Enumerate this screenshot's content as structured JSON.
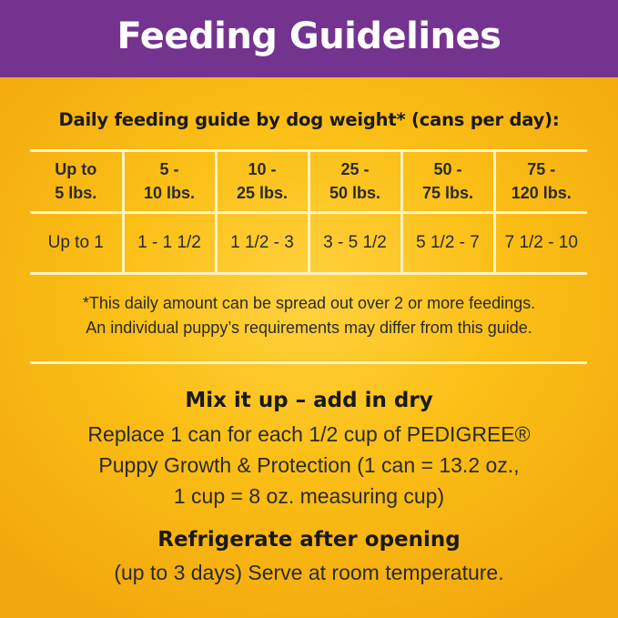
{
  "banner": {
    "title": "Feeding Guidelines"
  },
  "table": {
    "caption": "Daily feeding guide by dog weight* (cans per day):",
    "headers": [
      [
        "Up to",
        "5 lbs."
      ],
      [
        "5 -",
        "10 lbs."
      ],
      [
        "10 -",
        "25 lbs."
      ],
      [
        "25 -",
        "50 lbs."
      ],
      [
        "50 -",
        "75 lbs."
      ],
      [
        "75 -",
        "120 lbs."
      ]
    ],
    "amounts": [
      "Up to 1",
      "1 - 1 1/2",
      "1 1/2 - 3",
      "3 - 5 1/2",
      "5 1/2 - 7",
      "7 1/2 - 10"
    ]
  },
  "note": {
    "line1": "*This daily amount can be spread out over 2 or more feedings.",
    "line2": "An individual puppy’s requirements may differ from this guide."
  },
  "mix": {
    "title": "Mix it up – add in dry",
    "line1": "Replace 1 can for each 1/2 cup of PEDIGREE®",
    "line2": "Puppy Growth & Protection (1 can = 13.2 oz.,",
    "line3": "1 cup = 8 oz. measuring cup)"
  },
  "storage": {
    "title": "Refrigerate after opening",
    "body": "(up to 3 days) Serve at room temperature."
  },
  "colors": {
    "banner": "#74338f",
    "background": "#fbbf16",
    "grid_lines": "#fff3c4"
  }
}
